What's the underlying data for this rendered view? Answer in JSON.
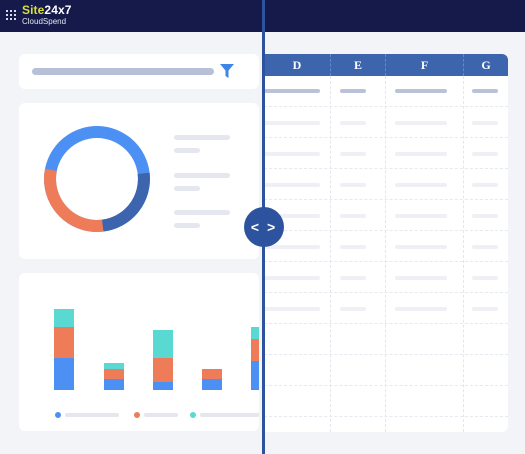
{
  "header": {
    "brand_site": "Site",
    "brand_rest": "24x7",
    "product": "CloudSpend"
  },
  "sheet": {
    "columns": [
      "D",
      "E",
      "F",
      "G"
    ]
  },
  "divider": {
    "handle_label": "< >"
  },
  "colors": {
    "header_bg": "#151a4a",
    "brand_accent": "#d8df3a",
    "primary_blue": "#3d65ad",
    "chart_blue": "#4d90f3",
    "chart_orange": "#ef7c59",
    "chart_teal": "#5ad9d3"
  },
  "icons": [
    "apps-grid-icon",
    "filter-icon",
    "split-handle-icon"
  ]
}
